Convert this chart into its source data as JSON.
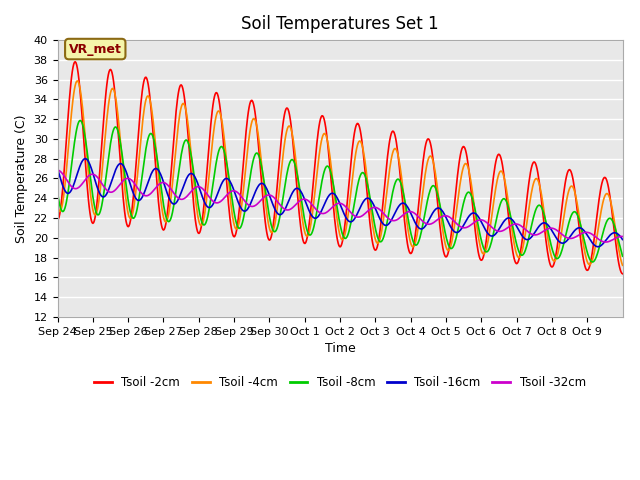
{
  "title": "Soil Temperatures Set 1",
  "xlabel": "Time",
  "ylabel": "Soil Temperature (C)",
  "ylim": [
    12,
    40
  ],
  "yticks": [
    12,
    14,
    16,
    18,
    20,
    22,
    24,
    26,
    28,
    30,
    32,
    34,
    36,
    38,
    40
  ],
  "annotation": "VR_met",
  "plot_bg_color": "#e8e8e8",
  "colors": {
    "Tsoil -2cm": "#ff0000",
    "Tsoil -4cm": "#ff8800",
    "Tsoil -8cm": "#00cc00",
    "Tsoil -16cm": "#0000cc",
    "Tsoil -32cm": "#cc00cc"
  },
  "x_tick_labels": [
    "Sep 24",
    "Sep 25",
    "Sep 26",
    "Sep 27",
    "Sep 28",
    "Sep 29",
    "Sep 30",
    "Oct 1",
    "Oct 2",
    "Oct 3",
    "Oct 4",
    "Oct 5",
    "Oct 6",
    "Oct 7",
    "Oct 8",
    "Oct 9"
  ],
  "legend_labels": [
    "Tsoil -2cm",
    "Tsoil -4cm",
    "Tsoil -8cm",
    "Tsoil -16cm",
    "Tsoil -32cm"
  ]
}
